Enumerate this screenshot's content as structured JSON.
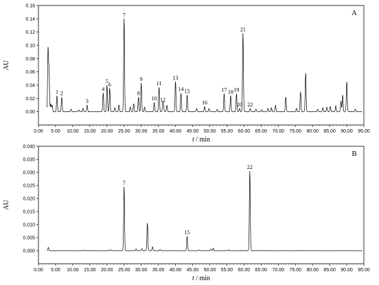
{
  "chart_data": [
    {
      "panel": "A",
      "type": "line",
      "xlabel": "t / min",
      "ylabel": "AU",
      "xlim": [
        0,
        95
      ],
      "ylim": [
        -0.02,
        0.16
      ],
      "x_ticks": [
        "0.00",
        "5.00",
        "10.00",
        "15.00",
        "20.00",
        "25.00",
        "30.00",
        "35.00",
        "40.00",
        "45.00",
        "50.00",
        "55.00",
        "60.00",
        "65.00",
        "70.00",
        "75.00",
        "80.00",
        "85.00",
        "90.00",
        "95.00"
      ],
      "y_ticks": [
        "0.00",
        "0.02",
        "0.04",
        "0.06",
        "0.08",
        "0.10",
        "0.12",
        "0.14",
        "0.16"
      ],
      "baseline": 0.0,
      "unlabeled_peaks": [
        {
          "t": 2.8,
          "h": 0.093
        },
        {
          "t": 3.1,
          "h": 0.06
        },
        {
          "t": 3.6,
          "h": 0.012
        },
        {
          "t": 4.0,
          "h": 0.01
        },
        {
          "t": 9.5,
          "h": 0.004
        },
        {
          "t": 11.8,
          "h": 0.003
        },
        {
          "t": 13.0,
          "h": 0.005
        },
        {
          "t": 22.3,
          "h": 0.006
        },
        {
          "t": 23.5,
          "h": 0.01
        },
        {
          "t": 26.8,
          "h": 0.007
        },
        {
          "t": 27.8,
          "h": 0.012
        },
        {
          "t": 31.0,
          "h": 0.007
        },
        {
          "t": 36.5,
          "h": 0.008
        },
        {
          "t": 37.5,
          "h": 0.01
        },
        {
          "t": 46.2,
          "h": 0.005
        },
        {
          "t": 49.8,
          "h": 0.005
        },
        {
          "t": 52.2,
          "h": 0.004
        },
        {
          "t": 63.5,
          "h": 0.004
        },
        {
          "t": 65.2,
          "h": 0.003
        },
        {
          "t": 67.0,
          "h": 0.005
        },
        {
          "t": 68.0,
          "h": 0.006
        },
        {
          "t": 69.2,
          "h": 0.01
        },
        {
          "t": 72.2,
          "h": 0.022
        },
        {
          "t": 75.3,
          "h": 0.005
        },
        {
          "t": 76.5,
          "h": 0.03
        },
        {
          "t": 78.0,
          "h": 0.058
        },
        {
          "t": 81.5,
          "h": 0.004
        },
        {
          "t": 83.0,
          "h": 0.006
        },
        {
          "t": 84.2,
          "h": 0.007
        },
        {
          "t": 85.2,
          "h": 0.008
        },
        {
          "t": 86.8,
          "h": 0.009
        },
        {
          "t": 88.3,
          "h": 0.016
        },
        {
          "t": 88.8,
          "h": 0.025
        },
        {
          "t": 90.0,
          "h": 0.045
        },
        {
          "t": 92.5,
          "h": 0.004
        }
      ],
      "labeled_peaks": [
        {
          "label": "1",
          "t": 5.4,
          "h": 0.024
        },
        {
          "label": "2",
          "t": 6.8,
          "h": 0.022
        },
        {
          "label": "3",
          "t": 14.2,
          "h": 0.01
        },
        {
          "label": "4",
          "t": 18.9,
          "h": 0.028
        },
        {
          "label": "5",
          "t": 20.0,
          "h": 0.04
        },
        {
          "label": "6",
          "t": 20.8,
          "h": 0.035
        },
        {
          "label": "7",
          "t": 25.0,
          "h": 0.14
        },
        {
          "label": "8",
          "t": 29.2,
          "h": 0.022
        },
        {
          "label": "9",
          "t": 30.0,
          "h": 0.043
        },
        {
          "label": "10",
          "t": 33.8,
          "h": 0.014
        },
        {
          "label": "11",
          "t": 35.2,
          "h": 0.037
        },
        {
          "label": "12",
          "t": 36.3,
          "h": 0.012
        },
        {
          "label": "13",
          "t": 40.0,
          "h": 0.045
        },
        {
          "label": "14",
          "t": 41.6,
          "h": 0.028
        },
        {
          "label": "15",
          "t": 43.4,
          "h": 0.025
        },
        {
          "label": "16",
          "t": 48.5,
          "h": 0.008
        },
        {
          "label": "17",
          "t": 54.2,
          "h": 0.027
        },
        {
          "label": "18",
          "t": 56.1,
          "h": 0.024
        },
        {
          "label": "19",
          "t": 57.8,
          "h": 0.027
        },
        {
          "label": "20",
          "t": 58.7,
          "h": 0.005
        },
        {
          "label": "21",
          "t": 59.7,
          "h": 0.118
        },
        {
          "label": "22",
          "t": 61.8,
          "h": 0.005
        }
      ]
    },
    {
      "panel": "B",
      "type": "line",
      "xlabel": "t / min",
      "ylabel": "AU",
      "xlim": [
        0,
        95
      ],
      "ylim": [
        -0.005,
        0.04
      ],
      "x_ticks": [
        "0.00",
        "5.00",
        "10.00",
        "15.00",
        "20.00",
        "25.00",
        "30.00",
        "35.00",
        "40.00",
        "45.00",
        "50.00",
        "55.00",
        "60.00",
        "65.00",
        "70.00",
        "75.00",
        "80.00",
        "85.00",
        "90.00",
        "95.00"
      ],
      "y_ticks": [
        "0.000",
        "0.005",
        "0.010",
        "0.015",
        "0.020",
        "0.025",
        "0.030",
        "0.035",
        "0.040"
      ],
      "baseline": 0.0,
      "unlabeled_peaks": [
        {
          "t": 2.9,
          "h": 0.0012
        },
        {
          "t": 13.5,
          "h": 0.0002
        },
        {
          "t": 21.0,
          "h": 0.0004
        },
        {
          "t": 28.5,
          "h": 0.0006
        },
        {
          "t": 30.2,
          "h": 0.0008
        },
        {
          "t": 31.8,
          "h": 0.0105
        },
        {
          "t": 33.3,
          "h": 0.0015
        },
        {
          "t": 35.5,
          "h": 0.0004
        },
        {
          "t": 47.0,
          "h": 0.0003
        },
        {
          "t": 50.3,
          "h": 0.0006
        },
        {
          "t": 51.0,
          "h": 0.0009
        },
        {
          "t": 55.5,
          "h": 0.0003
        },
        {
          "t": 65.0,
          "h": 0.0002
        },
        {
          "t": 76.0,
          "h": 0.0002
        }
      ],
      "labeled_peaks": [
        {
          "label": "7",
          "t": 25.0,
          "h": 0.0245
        },
        {
          "label": "15",
          "t": 43.4,
          "h": 0.0055
        },
        {
          "label": "22",
          "t": 61.7,
          "h": 0.0305
        }
      ]
    }
  ]
}
